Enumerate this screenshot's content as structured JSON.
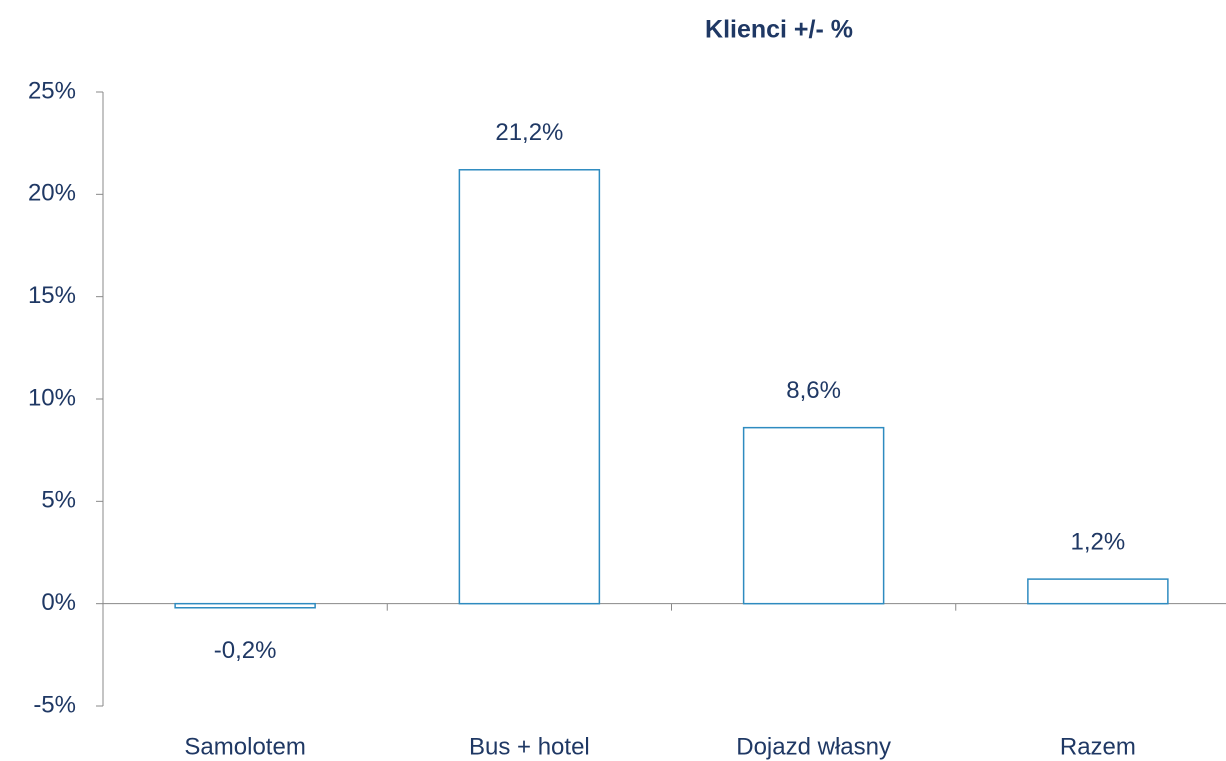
{
  "chart_data": {
    "type": "bar",
    "title": "Klienci +/- %",
    "categories": [
      "Samolotem",
      "Bus + hotel",
      "Dojazd własny",
      "Razem"
    ],
    "values": [
      -0.2,
      21.2,
      8.6,
      1.2
    ],
    "value_labels": [
      "-0,2%",
      "21,2%",
      "8,6%",
      "1,2%"
    ],
    "color": "#2e8bc0",
    "ylim": [
      -5,
      25
    ],
    "yticks": [
      {
        "value": -5,
        "label": "-5%"
      },
      {
        "value": 0,
        "label": "0%"
      },
      {
        "value": 5,
        "label": "5%"
      },
      {
        "value": 10,
        "label": "10%"
      },
      {
        "value": 15,
        "label": "15%"
      },
      {
        "value": 20,
        "label": "20%"
      },
      {
        "value": 25,
        "label": "25%"
      }
    ],
    "grid": false
  }
}
